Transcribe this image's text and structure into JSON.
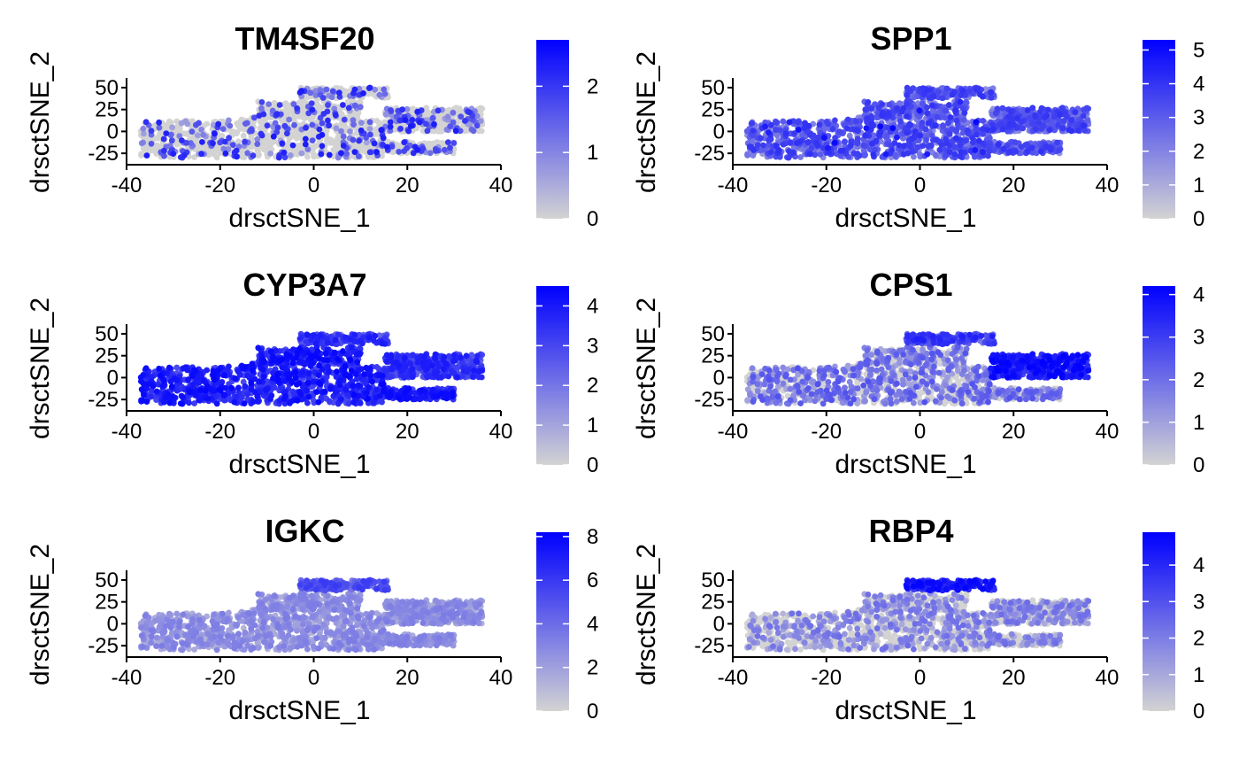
{
  "chart_data": [
    {
      "type": "scatter",
      "title": "TM4SF20",
      "xlabel": "drsctSNE_1",
      "ylabel": "drsctSNE_2",
      "xlim": [
        -40,
        40
      ],
      "ylim": [
        -38,
        55
      ],
      "xticks": [
        -40,
        -20,
        0,
        20,
        40
      ],
      "xtick_labels": [
        "-40",
        "-20",
        "0",
        "20",
        "40"
      ],
      "yticks": [
        50,
        25,
        0,
        -25
      ],
      "ytick_labels": [
        "50",
        "25",
        "0",
        "-25"
      ],
      "color_scale": {
        "low": "#D3D3D3",
        "high": "#0000FF",
        "min": 0,
        "max": 2.7
      },
      "legend_ticks": [
        0,
        1,
        2
      ],
      "legend_tick_labels": [
        "0",
        "1",
        "2"
      ],
      "legend_position": "right",
      "grid": false,
      "expression_profile": "sparse"
    },
    {
      "type": "scatter",
      "title": "SPP1",
      "xlabel": "drsctSNE_1",
      "ylabel": "drsctSNE_2",
      "xlim": [
        -40,
        40
      ],
      "ylim": [
        -38,
        55
      ],
      "xticks": [
        -40,
        -20,
        0,
        20,
        40
      ],
      "xtick_labels": [
        "-40",
        "-20",
        "0",
        "20",
        "40"
      ],
      "yticks": [
        50,
        25,
        0,
        -25
      ],
      "ytick_labels": [
        "50",
        "25",
        "0",
        "-25"
      ],
      "color_scale": {
        "low": "#D3D3D3",
        "high": "#0000FF",
        "min": 0,
        "max": 5.3
      },
      "legend_ticks": [
        0,
        1,
        2,
        3,
        4,
        5
      ],
      "legend_tick_labels": [
        "0",
        "1",
        "2",
        "3",
        "4",
        "5"
      ],
      "legend_position": "right",
      "grid": false,
      "expression_profile": "broad-medium"
    },
    {
      "type": "scatter",
      "title": "CYP3A7",
      "xlabel": "drsctSNE_1",
      "ylabel": "drsctSNE_2",
      "xlim": [
        -40,
        40
      ],
      "ylim": [
        -38,
        55
      ],
      "xticks": [
        -40,
        -20,
        0,
        20,
        40
      ],
      "xtick_labels": [
        "-40",
        "-20",
        "0",
        "20",
        "40"
      ],
      "yticks": [
        50,
        25,
        0,
        -25
      ],
      "ytick_labels": [
        "50",
        "25",
        "0",
        "-25"
      ],
      "color_scale": {
        "low": "#D3D3D3",
        "high": "#0000FF",
        "min": 0,
        "max": 4.5
      },
      "legend_ticks": [
        0,
        1,
        2,
        3,
        4
      ],
      "legend_tick_labels": [
        "0",
        "1",
        "2",
        "3",
        "4"
      ],
      "legend_position": "right",
      "grid": false,
      "expression_profile": "broad-high"
    },
    {
      "type": "scatter",
      "title": "CPS1",
      "xlabel": "drsctSNE_1",
      "ylabel": "drsctSNE_2",
      "xlim": [
        -40,
        40
      ],
      "ylim": [
        -38,
        55
      ],
      "xticks": [
        -40,
        -20,
        0,
        20,
        40
      ],
      "xtick_labels": [
        "-40",
        "-20",
        "0",
        "20",
        "40"
      ],
      "yticks": [
        50,
        25,
        0,
        -25
      ],
      "ytick_labels": [
        "50",
        "25",
        "0",
        "-25"
      ],
      "color_scale": {
        "low": "#D3D3D3",
        "high": "#0000FF",
        "min": 0,
        "max": 4.2
      },
      "legend_ticks": [
        0,
        1,
        2,
        3,
        4
      ],
      "legend_tick_labels": [
        "0",
        "1",
        "2",
        "3",
        "4"
      ],
      "legend_position": "right",
      "grid": false,
      "expression_profile": "right-cluster-high"
    },
    {
      "type": "scatter",
      "title": "IGKC",
      "xlabel": "drsctSNE_1",
      "ylabel": "drsctSNE_2",
      "xlim": [
        -40,
        40
      ],
      "ylim": [
        -38,
        55
      ],
      "xticks": [
        -40,
        -20,
        0,
        20,
        40
      ],
      "xtick_labels": [
        "-40",
        "-20",
        "0",
        "20",
        "40"
      ],
      "yticks": [
        50,
        25,
        0,
        -25
      ],
      "ytick_labels": [
        "50",
        "25",
        "0",
        "-25"
      ],
      "color_scale": {
        "low": "#D3D3D3",
        "high": "#0000FF",
        "min": 0,
        "max": 8.2
      },
      "legend_ticks": [
        0,
        2,
        4,
        6,
        8
      ],
      "legend_tick_labels": [
        "0",
        "2",
        "4",
        "6",
        "8"
      ],
      "legend_position": "right",
      "grid": false,
      "expression_profile": "low-uniform-top-higher"
    },
    {
      "type": "scatter",
      "title": "RBP4",
      "xlabel": "drsctSNE_1",
      "ylabel": "drsctSNE_2",
      "xlim": [
        -40,
        40
      ],
      "ylim": [
        -38,
        55
      ],
      "xticks": [
        -40,
        -20,
        0,
        20,
        40
      ],
      "xtick_labels": [
        "-40",
        "-20",
        "0",
        "20",
        "40"
      ],
      "yticks": [
        50,
        25,
        0,
        -25
      ],
      "ytick_labels": [
        "50",
        "25",
        "0",
        "-25"
      ],
      "color_scale": {
        "low": "#D3D3D3",
        "high": "#0000FF",
        "min": 0,
        "max": 4.9
      },
      "legend_ticks": [
        0,
        1,
        2,
        3,
        4
      ],
      "legend_tick_labels": [
        "0",
        "1",
        "2",
        "3",
        "4"
      ],
      "legend_position": "right",
      "grid": false,
      "expression_profile": "top-cluster-high"
    }
  ]
}
